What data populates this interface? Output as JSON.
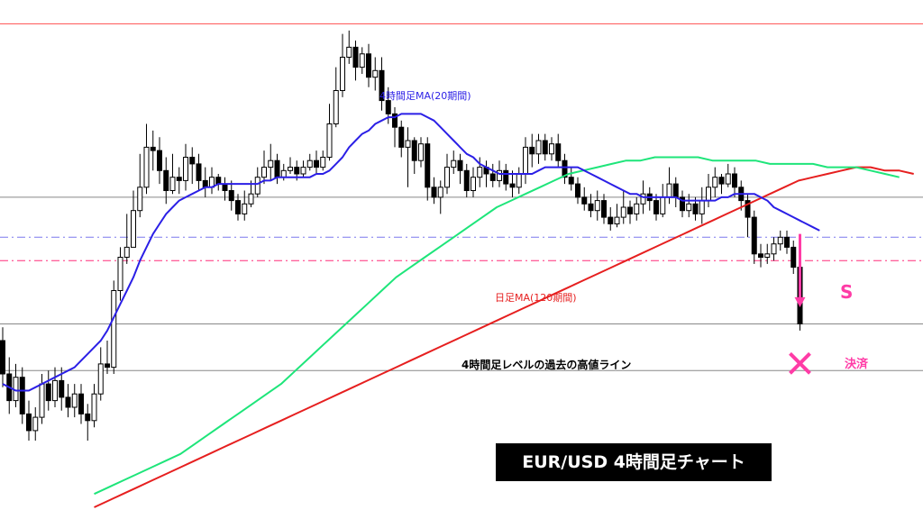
{
  "chart_data": {
    "type": "candlestick",
    "title": "EUR/USD  4時間足チャート",
    "grid": false,
    "candles": [
      [
        0.6,
        0.5,
        0.64,
        0.46
      ],
      [
        0.5,
        0.42,
        0.55,
        0.38
      ],
      [
        0.42,
        0.49,
        0.53,
        0.4
      ],
      [
        0.49,
        0.38,
        0.52,
        0.35
      ],
      [
        0.38,
        0.33,
        0.42,
        0.3
      ],
      [
        0.33,
        0.37,
        0.4,
        0.3
      ],
      [
        0.37,
        0.47,
        0.5,
        0.35
      ],
      [
        0.47,
        0.42,
        0.51,
        0.39
      ],
      [
        0.42,
        0.48,
        0.52,
        0.4
      ],
      [
        0.48,
        0.43,
        0.52,
        0.39
      ],
      [
        0.43,
        0.4,
        0.47,
        0.37
      ],
      [
        0.4,
        0.44,
        0.47,
        0.37
      ],
      [
        0.44,
        0.38,
        0.47,
        0.35
      ],
      [
        0.38,
        0.36,
        0.41,
        0.3
      ],
      [
        0.36,
        0.44,
        0.47,
        0.34
      ],
      [
        0.44,
        0.53,
        0.58,
        0.42
      ],
      [
        0.53,
        0.52,
        0.6,
        0.5
      ],
      [
        0.52,
        0.75,
        0.78,
        0.5
      ],
      [
        0.75,
        0.85,
        0.88,
        0.72
      ],
      [
        0.85,
        0.88,
        0.98,
        0.83
      ],
      [
        0.88,
        0.99,
        1.05,
        0.95
      ],
      [
        0.99,
        1.06,
        1.16,
        0.97
      ],
      [
        1.06,
        1.18,
        1.25,
        1.04
      ],
      [
        1.18,
        1.17,
        1.23,
        1.11
      ],
      [
        1.17,
        1.11,
        1.21,
        1.07
      ],
      [
        1.11,
        1.05,
        1.15,
        1.01
      ],
      [
        1.05,
        1.09,
        1.16,
        1.04
      ],
      [
        1.09,
        1.08,
        1.12,
        1.04
      ],
      [
        1.08,
        1.15,
        1.19,
        1.05
      ],
      [
        1.15,
        1.13,
        1.18,
        1.07
      ],
      [
        1.13,
        1.08,
        1.16,
        1.05
      ],
      [
        1.08,
        1.06,
        1.12,
        1.03
      ],
      [
        1.06,
        1.09,
        1.12,
        1.04
      ],
      [
        1.09,
        1.07,
        1.1,
        1.05
      ],
      [
        1.07,
        1.05,
        1.09,
        1.02
      ],
      [
        1.05,
        1.02,
        1.08,
        0.99
      ],
      [
        1.02,
        0.98,
        1.04,
        0.96
      ],
      [
        0.98,
        1.01,
        1.05,
        0.96
      ],
      [
        1.01,
        1.04,
        1.08,
        1.0
      ],
      [
        1.04,
        1.09,
        1.12,
        1.03
      ],
      [
        1.09,
        1.12,
        1.17,
        1.07
      ],
      [
        1.12,
        1.14,
        1.19,
        1.08
      ],
      [
        1.14,
        1.09,
        1.16,
        1.07
      ],
      [
        1.09,
        1.11,
        1.13,
        1.08
      ],
      [
        1.11,
        1.12,
        1.15,
        1.1
      ],
      [
        1.12,
        1.1,
        1.14,
        1.08
      ],
      [
        1.1,
        1.12,
        1.14,
        1.09
      ],
      [
        1.12,
        1.14,
        1.16,
        1.11
      ],
      [
        1.14,
        1.12,
        1.17,
        1.1
      ],
      [
        1.12,
        1.15,
        1.17,
        1.11
      ],
      [
        1.15,
        1.25,
        1.31,
        1.14
      ],
      [
        1.25,
        1.35,
        1.42,
        1.24
      ],
      [
        1.35,
        1.45,
        1.52,
        1.33
      ],
      [
        1.45,
        1.48,
        1.53,
        1.43
      ],
      [
        1.48,
        1.42,
        1.5,
        1.38
      ],
      [
        1.42,
        1.46,
        1.48,
        1.4
      ],
      [
        1.46,
        1.39,
        1.49,
        1.36
      ],
      [
        1.39,
        1.41,
        1.45,
        1.35
      ],
      [
        1.41,
        1.32,
        1.45,
        1.29
      ],
      [
        1.32,
        1.28,
        1.36,
        1.25
      ],
      [
        1.28,
        1.24,
        1.3,
        1.18
      ],
      [
        1.24,
        1.18,
        1.26,
        1.15
      ],
      [
        1.18,
        1.2,
        1.24,
        1.06
      ],
      [
        1.2,
        1.14,
        1.21,
        1.1
      ],
      [
        1.14,
        1.19,
        1.21,
        1.12
      ],
      [
        1.19,
        1.06,
        1.21,
        1.02
      ],
      [
        1.06,
        1.03,
        1.09,
        1.01
      ],
      [
        1.03,
        1.06,
        1.08,
        0.98
      ],
      [
        1.06,
        1.12,
        1.16,
        1.04
      ],
      [
        1.12,
        1.14,
        1.17,
        1.1
      ],
      [
        1.14,
        1.11,
        1.16,
        1.07
      ],
      [
        1.11,
        1.05,
        1.13,
        1.03
      ],
      [
        1.05,
        1.09,
        1.12,
        1.03
      ],
      [
        1.09,
        1.12,
        1.15,
        1.06
      ],
      [
        1.12,
        1.1,
        1.14,
        1.06
      ],
      [
        1.1,
        1.08,
        1.13,
        1.06
      ],
      [
        1.08,
        1.11,
        1.14,
        1.06
      ],
      [
        1.11,
        1.07,
        1.13,
        1.05
      ],
      [
        1.07,
        1.06,
        1.11,
        1.03
      ],
      [
        1.06,
        1.1,
        1.12,
        1.04
      ],
      [
        1.1,
        1.18,
        1.21,
        1.07
      ],
      [
        1.18,
        1.16,
        1.22,
        1.12
      ],
      [
        1.16,
        1.2,
        1.22,
        1.13
      ],
      [
        1.2,
        1.16,
        1.22,
        1.14
      ],
      [
        1.16,
        1.19,
        1.21,
        1.14
      ],
      [
        1.19,
        1.14,
        1.22,
        1.12
      ],
      [
        1.14,
        1.09,
        1.16,
        1.07
      ],
      [
        1.09,
        1.07,
        1.12,
        1.05
      ],
      [
        1.07,
        1.03,
        1.09,
        1.01
      ],
      [
        1.03,
        1.01,
        1.06,
        0.99
      ],
      [
        1.01,
        0.99,
        1.04,
        0.97
      ],
      [
        0.99,
        1.02,
        1.05,
        0.96
      ],
      [
        1.02,
        0.97,
        1.04,
        0.95
      ],
      [
        0.97,
        0.95,
        1.0,
        0.93
      ],
      [
        0.95,
        0.97,
        1.01,
        0.94
      ],
      [
        0.97,
        1.0,
        1.05,
        0.95
      ],
      [
        1.0,
        0.98,
        1.02,
        0.95
      ],
      [
        0.98,
        1.01,
        1.03,
        0.96
      ],
      [
        1.01,
        1.04,
        1.08,
        0.98
      ],
      [
        1.04,
        1.02,
        1.06,
        0.99
      ],
      [
        1.02,
        0.98,
        1.04,
        0.96
      ],
      [
        0.98,
        1.03,
        1.07,
        0.97
      ],
      [
        1.03,
        1.07,
        1.12,
        1.01
      ],
      [
        1.07,
        1.03,
        1.09,
        1.0
      ],
      [
        1.03,
        0.99,
        1.05,
        0.97
      ],
      [
        0.99,
        1.01,
        1.04,
        0.97
      ],
      [
        1.01,
        0.98,
        1.03,
        0.96
      ],
      [
        0.98,
        1.02,
        1.06,
        0.95
      ],
      [
        1.02,
        1.06,
        1.1,
        1.0
      ],
      [
        1.06,
        1.09,
        1.12,
        1.03
      ],
      [
        1.09,
        1.07,
        1.1,
        1.04
      ],
      [
        1.07,
        1.1,
        1.13,
        1.06
      ],
      [
        1.1,
        1.06,
        1.12,
        1.03
      ],
      [
        1.06,
        1.02,
        1.08,
        0.99
      ],
      [
        1.02,
        0.97,
        1.04,
        0.91
      ],
      [
        0.97,
        0.86,
        0.99,
        0.83
      ],
      [
        0.86,
        0.85,
        0.89,
        0.82
      ],
      [
        0.85,
        0.86,
        0.89,
        0.83
      ],
      [
        0.86,
        0.89,
        0.91,
        0.84
      ],
      [
        0.89,
        0.91,
        0.93,
        0.87
      ],
      [
        0.91,
        0.88,
        0.93,
        0.86
      ],
      [
        0.88,
        0.82,
        0.9,
        0.8
      ],
      [
        0.82,
        0.65,
        0.84,
        0.63
      ]
    ],
    "ma_4h_20": [
      0.47,
      0.46,
      0.45,
      0.45,
      0.45,
      0.46,
      0.47,
      0.48,
      0.49,
      0.5,
      0.51,
      0.52,
      0.54,
      0.56,
      0.58,
      0.6,
      0.63,
      0.67,
      0.71,
      0.75,
      0.79,
      0.84,
      0.88,
      0.92,
      0.95,
      0.98,
      1.0,
      1.02,
      1.03,
      1.04,
      1.05,
      1.06,
      1.06,
      1.07,
      1.07,
      1.07,
      1.07,
      1.07,
      1.07,
      1.07,
      1.08,
      1.08,
      1.09,
      1.09,
      1.09,
      1.09,
      1.09,
      1.09,
      1.1,
      1.1,
      1.11,
      1.13,
      1.15,
      1.18,
      1.2,
      1.22,
      1.23,
      1.25,
      1.26,
      1.27,
      1.27,
      1.28,
      1.28,
      1.28,
      1.28,
      1.27,
      1.26,
      1.24,
      1.22,
      1.2,
      1.18,
      1.16,
      1.15,
      1.13,
      1.12,
      1.11,
      1.1,
      1.1,
      1.1,
      1.1,
      1.1,
      1.1,
      1.11,
      1.12,
      1.12,
      1.12,
      1.12,
      1.12,
      1.12,
      1.11,
      1.1,
      1.09,
      1.08,
      1.07,
      1.06,
      1.05,
      1.04,
      1.04,
      1.03,
      1.03,
      1.03,
      1.03,
      1.03,
      1.03,
      1.02,
      1.02,
      1.02,
      1.02,
      1.02,
      1.02,
      1.03,
      1.03,
      1.04,
      1.04,
      1.04,
      1.04,
      1.03,
      1.02,
      1.0,
      0.99,
      0.98,
      0.97,
      0.96,
      0.95,
      0.94,
      0.93
    ],
    "ma_4h_120": [
      0.14,
      0.16,
      0.18,
      0.2,
      0.22,
      0.24,
      0.26,
      0.29,
      0.32,
      0.35,
      0.38,
      0.41,
      0.44,
      0.47,
      0.51,
      0.55,
      0.59,
      0.63,
      0.67,
      0.71,
      0.75,
      0.79,
      0.82,
      0.85,
      0.88,
      0.91,
      0.94,
      0.97,
      1.0,
      1.02,
      1.04,
      1.06,
      1.08,
      1.1,
      1.11,
      1.12,
      1.13,
      1.14,
      1.14,
      1.15,
      1.15,
      1.15,
      1.15,
      1.14,
      1.14,
      1.14,
      1.14,
      1.13,
      1.13,
      1.13,
      1.13,
      1.12,
      1.12,
      1.12,
      1.11,
      1.1,
      1.09
    ],
    "ma_daily_120": [
      0.1,
      0.12,
      0.14,
      0.16,
      0.18,
      0.2,
      0.22,
      0.24,
      0.26,
      0.28,
      0.3,
      0.32,
      0.34,
      0.36,
      0.38,
      0.4,
      0.42,
      0.44,
      0.46,
      0.48,
      0.5,
      0.52,
      0.54,
      0.56,
      0.58,
      0.6,
      0.62,
      0.64,
      0.66,
      0.68,
      0.7,
      0.72,
      0.74,
      0.76,
      0.78,
      0.8,
      0.82,
      0.84,
      0.86,
      0.88,
      0.9,
      0.92,
      0.94,
      0.96,
      0.98,
      1.0,
      1.02,
      1.04,
      1.06,
      1.08,
      1.09,
      1.1,
      1.11,
      1.12,
      1.12,
      1.11,
      1.11,
      1.1
    ],
    "levels": [
      {
        "value": 1.55,
        "color": "#ff5a5a",
        "style": "solid"
      },
      {
        "value": 1.03,
        "color": "#888888",
        "style": "solid"
      },
      {
        "value": 0.91,
        "color": "#7b78ee",
        "style": "dashdot"
      },
      {
        "value": 0.84,
        "color": "#ff2d7a",
        "style": "dashdot"
      },
      {
        "value": 0.65,
        "color": "#888888",
        "style": "solid"
      },
      {
        "value": 0.51,
        "color": "#888888",
        "style": "solid"
      }
    ],
    "annotations": {
      "ma20_label": "4時間足MA(20期間)",
      "ma_daily_label": "日足MA(120期間)",
      "level_label": "4時間足レベルの過去の高値ライン",
      "entry_label": "S",
      "exit_label": "決済"
    },
    "colors": {
      "ma20": "#2b1fe6",
      "ma120_4h": "#1ee57a",
      "ma_daily": "#e61f1f",
      "signal": "#ff3ca6",
      "candle": "#000000"
    }
  }
}
